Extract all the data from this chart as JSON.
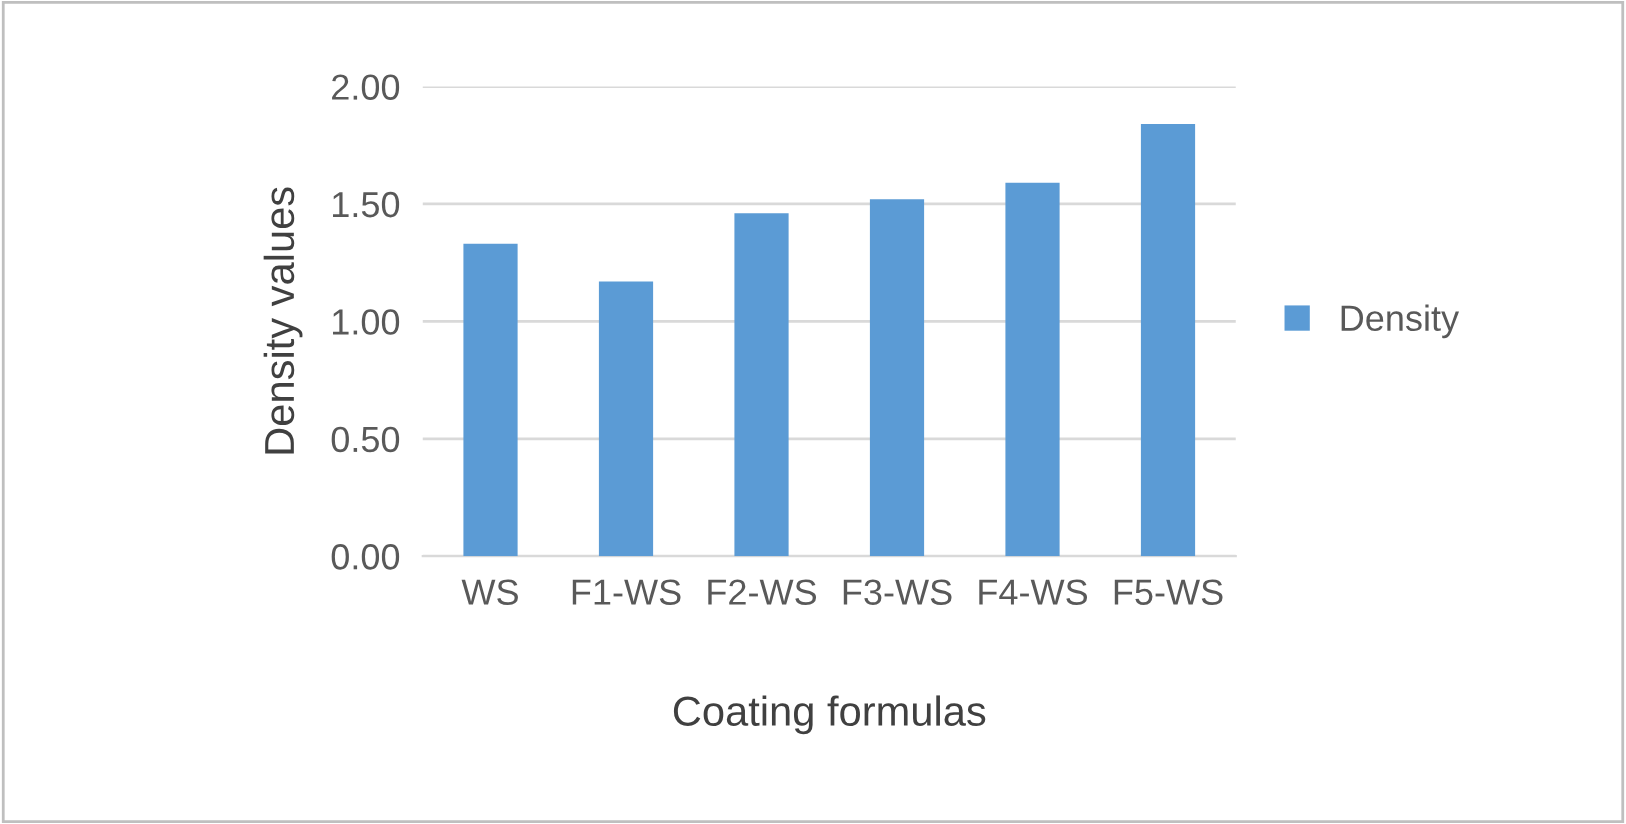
{
  "chart_data": {
    "type": "bar",
    "xlabel": "Coating formulas",
    "ylabel": "Density values",
    "categories": [
      "WS",
      "F1-WS",
      "F2-WS",
      "F3-WS",
      "F4-WS",
      "F5-WS"
    ],
    "series": [
      {
        "name": "Density",
        "color": "#5b9bd5",
        "values": [
          1.33,
          1.17,
          1.46,
          1.52,
          1.59,
          1.84
        ]
      }
    ],
    "ylim": [
      0,
      2
    ],
    "yticks": [
      {
        "value": 0,
        "label": "0.00"
      },
      {
        "value": 0.5,
        "label": "0.50"
      },
      {
        "value": 1,
        "label": "1.00"
      },
      {
        "value": 1.5,
        "label": "1.50"
      },
      {
        "value": 2,
        "label": "2.00"
      }
    ],
    "grid": "y",
    "legend": "right"
  }
}
